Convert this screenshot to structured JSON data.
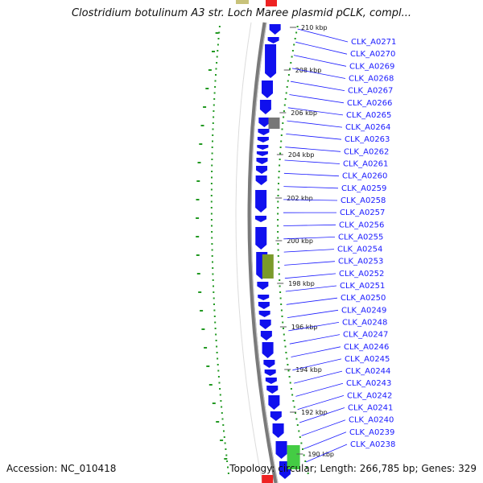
{
  "title": "Clostridium botulinum A3 str. Loch Maree plasmid pCLK, compl...",
  "footer": {
    "accession": "Accession: NC_010418",
    "summary": "Topology: circular; Length: 266,785 bp; Genes: 329"
  },
  "colors": {
    "gene": "#1010ee",
    "backbone": "#7a7a7a",
    "label": "#1a1aff",
    "gc_ticks": "#229922",
    "special_olive": "#7a9a2a",
    "special_green": "#44cc44",
    "special_gray": "#777777",
    "special_red": "#ee2222",
    "special_khaki": "#c8c27a"
  },
  "kbp_ticks": [
    "210 kbp",
    "208 kbp",
    "206 kbp",
    "204 kbp",
    "202 kbp",
    "200 kbp",
    "198 kbp",
    "196 kbp",
    "194 kbp",
    "192 kbp",
    "190 kbp"
  ],
  "genes": [
    "CLK_A0271",
    "CLK_A0270",
    "CLK_A0269",
    "CLK_A0268",
    "CLK_A0267",
    "CLK_A0266",
    "CLK_A0265",
    "CLK_A0264",
    "CLK_A0263",
    "CLK_A0262",
    "CLK_A0261",
    "CLK_A0260",
    "CLK_A0259",
    "CLK_A0258",
    "CLK_A0257",
    "CLK_A0256",
    "CLK_A0255",
    "CLK_A0254",
    "CLK_A0253",
    "CLK_A0252",
    "CLK_A0251",
    "CLK_A0250",
    "CLK_A0249",
    "CLK_A0248",
    "CLK_A0247",
    "CLK_A0246",
    "CLK_A0245",
    "CLK_A0244",
    "CLK_A0243",
    "CLK_A0242",
    "CLK_A0241",
    "CLK_A0240",
    "CLK_A0239",
    "CLK_A0238"
  ]
}
